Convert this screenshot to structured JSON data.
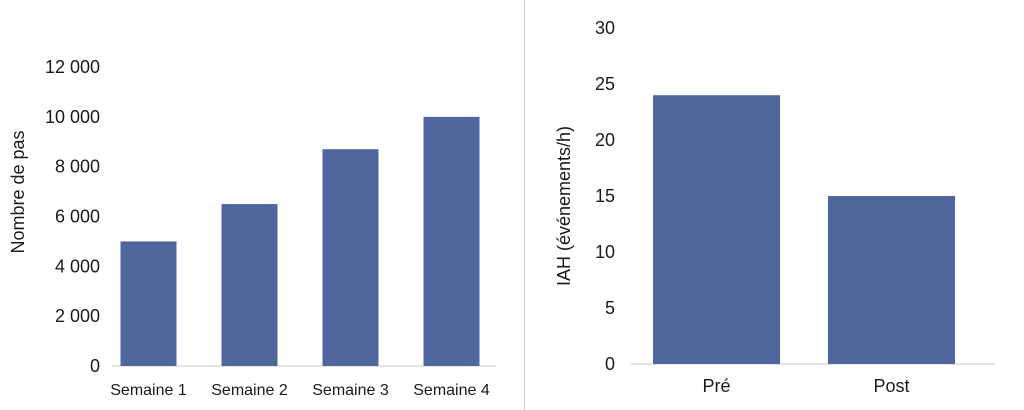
{
  "colors": {
    "bar": "#4f679d",
    "axis": "#c8c8c8",
    "divider": "#c9ccd3"
  },
  "chart_data": [
    {
      "type": "bar",
      "title": "",
      "xlabel": "",
      "ylabel": "Nombre de pas",
      "ylim": [
        0,
        12000
      ],
      "y_ticks": [
        0,
        2000,
        4000,
        6000,
        8000,
        10000,
        12000
      ],
      "y_tick_labels": [
        "0",
        "2 000",
        "4 000",
        "6 000",
        "8 000",
        "10 000",
        "12 000"
      ],
      "categories": [
        "Semaine 1",
        "Semaine 2",
        "Semaine 3",
        "Semaine 4"
      ],
      "values": [
        5000,
        6500,
        8700,
        10000
      ],
      "grid": false,
      "legend": "none"
    },
    {
      "type": "bar",
      "title": "",
      "xlabel": "",
      "ylabel": "IAH (événements/h)",
      "ylim": [
        0,
        30
      ],
      "y_ticks": [
        0,
        5,
        10,
        15,
        20,
        25,
        30
      ],
      "y_tick_labels": [
        "0",
        "5",
        "10",
        "15",
        "20",
        "25",
        "30"
      ],
      "categories": [
        "Pré",
        "Post"
      ],
      "values": [
        24,
        15
      ],
      "grid": false,
      "legend": "none"
    }
  ]
}
